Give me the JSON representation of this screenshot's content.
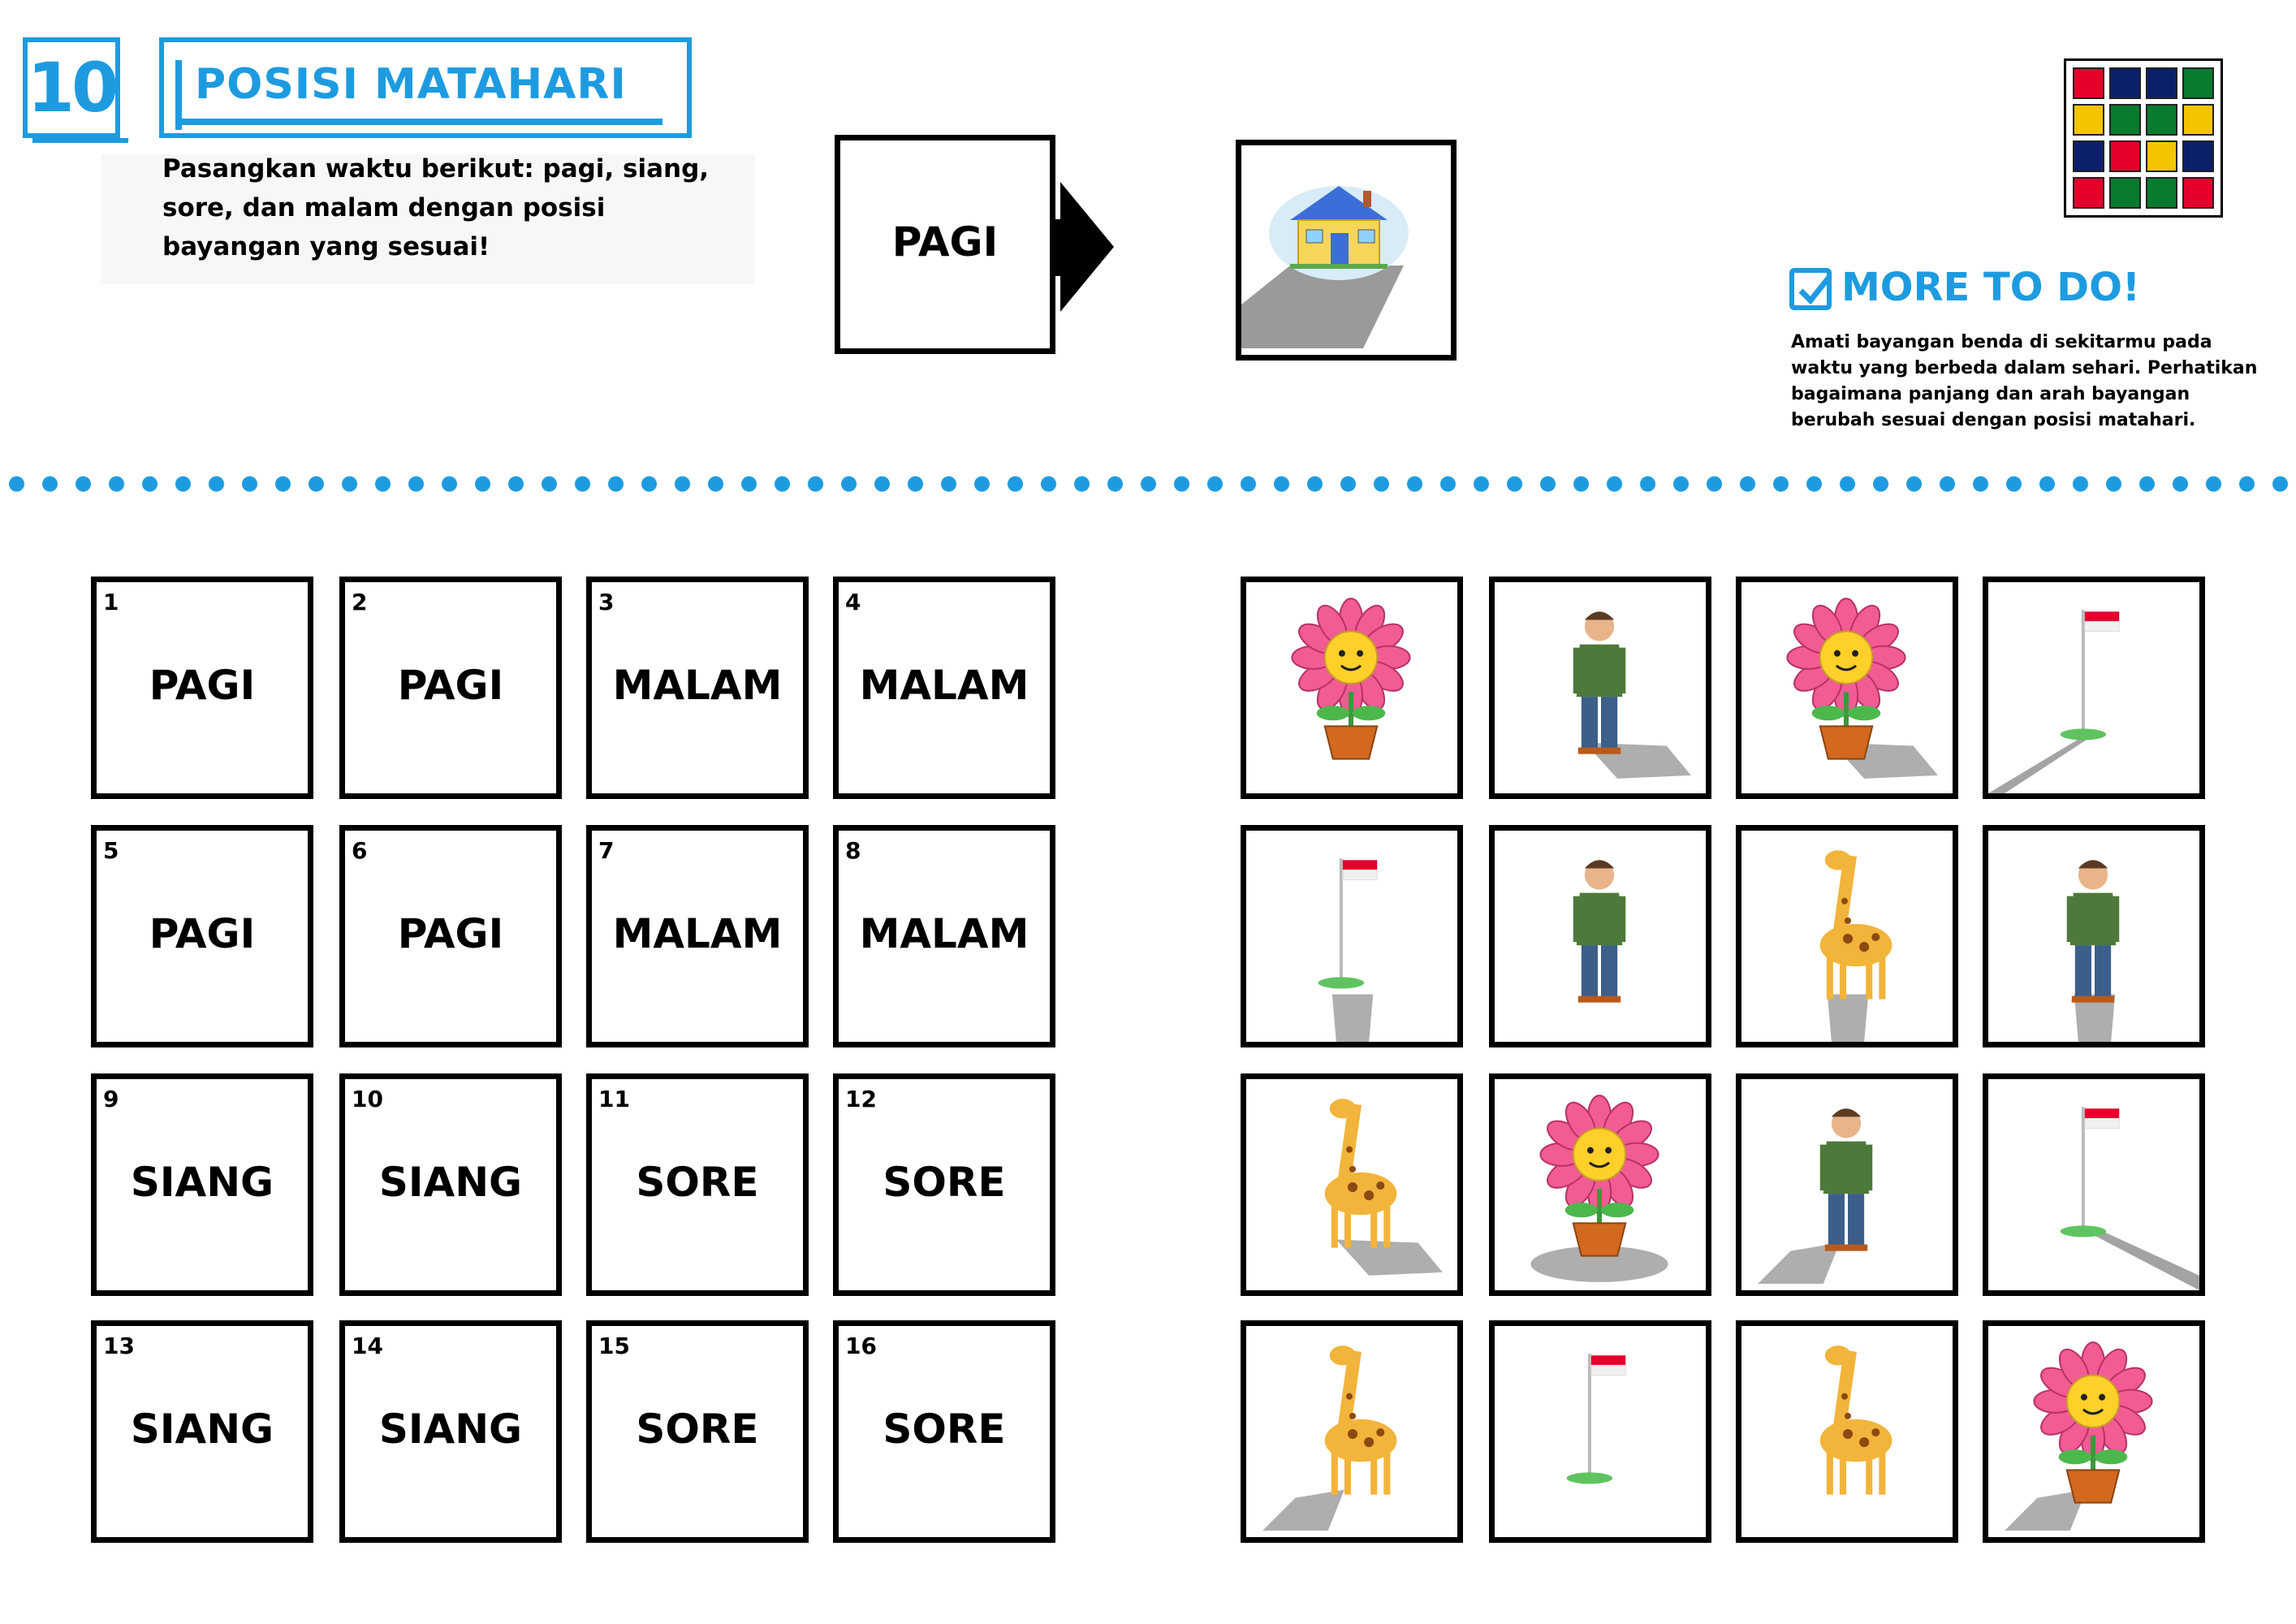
{
  "header": {
    "number": "10",
    "title": "POSISI MATAHARI",
    "instruction": "Pasangkan waktu berikut: pagi, siang, sore, dan malam dengan posisi bayangan yang sesuai!"
  },
  "example": {
    "label": "PAGI",
    "image_icon": "house-icon"
  },
  "more_to_do": {
    "title": "MORE TO DO!",
    "text": "Amati bayangan benda di sekitarmu pada waktu yang berbeda dalam sehari. Perhatikan bagaimana panjang dan arah bayangan berubah sesuai dengan posisi matahari."
  },
  "logo_colors": [
    "#e4002b",
    "#0b1f6b",
    "#0b1f6b",
    "#0a7a2f",
    "#f5c400",
    "#0a7a2f",
    "#0a7a2f",
    "#f5c400",
    "#0b1f6b",
    "#e4002b",
    "#f5c400",
    "#0b1f6b",
    "#e4002b",
    "#0a7a2f",
    "#0a7a2f",
    "#e4002b"
  ],
  "word_cards": [
    {
      "number": "1",
      "label": "PAGI"
    },
    {
      "number": "2",
      "label": "PAGI"
    },
    {
      "number": "3",
      "label": "MALAM"
    },
    {
      "number": "4",
      "label": "MALAM"
    },
    {
      "number": "5",
      "label": "PAGI"
    },
    {
      "number": "6",
      "label": "PAGI"
    },
    {
      "number": "7",
      "label": "MALAM"
    },
    {
      "number": "8",
      "label": "MALAM"
    },
    {
      "number": "9",
      "label": "SIANG"
    },
    {
      "number": "10",
      "label": "SIANG"
    },
    {
      "number": "11",
      "label": "SORE"
    },
    {
      "number": "12",
      "label": "SORE"
    },
    {
      "number": "13",
      "label": "SIANG"
    },
    {
      "number": "14",
      "label": "SIANG"
    },
    {
      "number": "15",
      "label": "SORE"
    },
    {
      "number": "16",
      "label": "SORE"
    }
  ],
  "picture_cards": [
    {
      "icon": "flower-icon",
      "shadow": "none"
    },
    {
      "icon": "man-icon",
      "shadow": "right"
    },
    {
      "icon": "flower-icon",
      "shadow": "right"
    },
    {
      "icon": "flag-icon",
      "shadow": "left-long"
    },
    {
      "icon": "flag-icon",
      "shadow": "down"
    },
    {
      "icon": "man-icon",
      "shadow": "none"
    },
    {
      "icon": "giraffe-icon",
      "shadow": "down"
    },
    {
      "icon": "man-icon",
      "shadow": "down"
    },
    {
      "icon": "giraffe-icon",
      "shadow": "right"
    },
    {
      "icon": "flower-icon",
      "shadow": "under"
    },
    {
      "icon": "man-icon",
      "shadow": "left"
    },
    {
      "icon": "flag-icon",
      "shadow": "right-long"
    },
    {
      "icon": "giraffe-icon",
      "shadow": "left"
    },
    {
      "icon": "flag-icon",
      "shadow": "none"
    },
    {
      "icon": "giraffe-icon",
      "shadow": "none"
    },
    {
      "icon": "flower-icon",
      "shadow": "left"
    }
  ]
}
